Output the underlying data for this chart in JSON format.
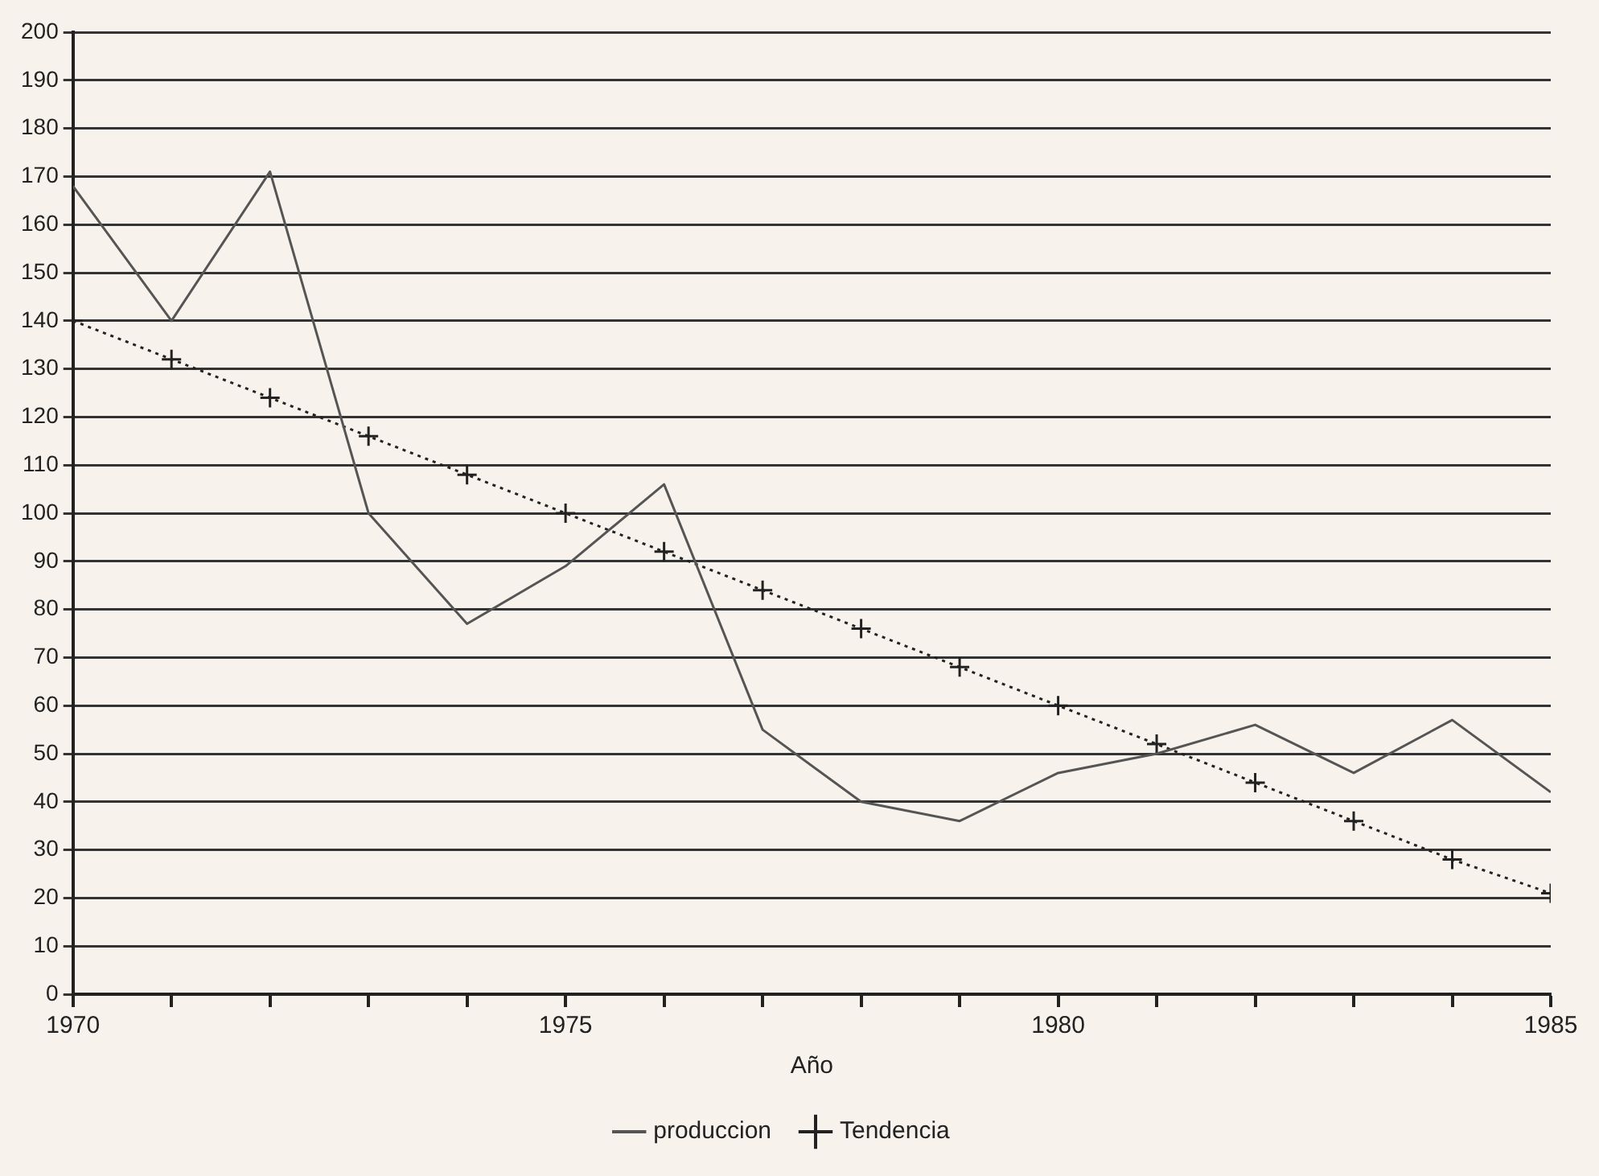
{
  "chart_data": {
    "type": "line",
    "xlabel": "Año",
    "x": [
      1970,
      1971,
      1972,
      1973,
      1974,
      1975,
      1976,
      1977,
      1978,
      1979,
      1980,
      1981,
      1982,
      1983,
      1984,
      1985
    ],
    "series": [
      {
        "name": "produccion",
        "color": "#555555",
        "marker": "none",
        "line_style": "solid",
        "values": [
          168,
          140,
          171,
          100,
          77,
          89,
          106,
          55,
          40,
          36,
          46,
          50,
          56,
          46,
          57,
          42
        ]
      },
      {
        "name": "Tendencia",
        "color": "#222222",
        "marker": "cross",
        "line_style": "dotted",
        "values": [
          140,
          132,
          124,
          116,
          108,
          100,
          92,
          84,
          76,
          68,
          60,
          52,
          44,
          36,
          28,
          21
        ]
      }
    ],
    "xlim": [
      1970,
      1985
    ],
    "xticks": [
      1970,
      {
        "value": 1971,
        "label": null
      },
      {
        "value": 1972,
        "label": null
      },
      {
        "value": 1973,
        "label": null
      },
      {
        "value": 1974,
        "label": null
      },
      1975,
      {
        "value": 1976,
        "label": null
      },
      {
        "value": 1977,
        "label": null
      },
      {
        "value": 1978,
        "label": null
      },
      {
        "value": 1979,
        "label": null
      },
      1980,
      {
        "value": 1981,
        "label": null
      },
      {
        "value": 1982,
        "label": null
      },
      {
        "value": 1983,
        "label": null
      },
      {
        "value": 1984,
        "label": null
      },
      1985
    ],
    "ylim": [
      0,
      200
    ],
    "yticks": [
      0,
      10,
      20,
      30,
      40,
      50,
      60,
      70,
      80,
      90,
      100,
      110,
      120,
      130,
      140,
      150,
      160,
      170,
      180,
      190,
      200
    ],
    "grid": "y",
    "legend": "bottom"
  }
}
